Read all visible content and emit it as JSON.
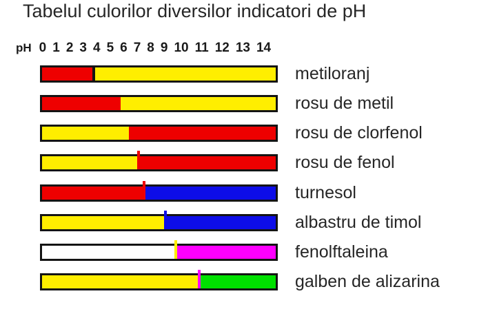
{
  "title": "Tabelul culorilor diversilor indicatori de pH",
  "colors": {
    "red": "#ee0000",
    "yellow": "#ffee00",
    "blue": "#0d0de8",
    "magenta": "#ff00ff",
    "green": "#00e000",
    "white": "#ffffff",
    "bar_border": "#141414",
    "text": "#262626"
  },
  "chart_data": {
    "type": "bar",
    "variant": "horizontal-color-range",
    "title": "Tabelul culorilor diversilor indicatori de pH",
    "axis": {
      "label": "pH",
      "min": 0,
      "max": 14,
      "ticks": [
        "0",
        "1",
        "2",
        "3",
        "4",
        "5",
        "6",
        "7",
        "8",
        "9",
        "10",
        "11",
        "12",
        "13",
        "14"
      ]
    },
    "legend_position": "right",
    "indicators": [
      {
        "name": "metiloranj",
        "transition_ph": 3.1,
        "segments": [
          {
            "color_name": "red",
            "color": "#ee0000",
            "from": 0,
            "to": 3.1
          },
          {
            "color_name": "yellow",
            "color": "#ffee00",
            "from": 3.1,
            "to": 14
          }
        ],
        "divider": {
          "color": "#141414",
          "at": 3.1,
          "above": false
        }
      },
      {
        "name": "rosu de metil",
        "transition_ph": 4.7,
        "segments": [
          {
            "color_name": "red",
            "color": "#ee0000",
            "from": 0,
            "to": 4.7
          },
          {
            "color_name": "yellow",
            "color": "#ffee00",
            "from": 4.7,
            "to": 14
          }
        ],
        "divider": null
      },
      {
        "name": "rosu de clorfenol",
        "transition_ph": 5.2,
        "segments": [
          {
            "color_name": "yellow",
            "color": "#ffee00",
            "from": 0,
            "to": 5.2
          },
          {
            "color_name": "red",
            "color": "#ee0000",
            "from": 5.2,
            "to": 14
          }
        ],
        "divider": null
      },
      {
        "name": "rosu de fenol",
        "transition_ph": 5.8,
        "segments": [
          {
            "color_name": "yellow",
            "color": "#ffee00",
            "from": 0,
            "to": 5.8
          },
          {
            "color_name": "red",
            "color": "#ee0000",
            "from": 5.8,
            "to": 14
          }
        ],
        "divider": {
          "color": "#ee0000",
          "at": 5.8,
          "above": true
        }
      },
      {
        "name": "turnesol",
        "transition_ph": 6.1,
        "segments": [
          {
            "color_name": "red",
            "color": "#ee0000",
            "from": 0,
            "to": 6.1
          },
          {
            "color_name": "blue",
            "color": "#0d0de8",
            "from": 6.1,
            "to": 14
          }
        ],
        "divider": {
          "color": "#ee0000",
          "at": 6.1,
          "above": true
        }
      },
      {
        "name": "albastru de timol",
        "transition_ph": 7.4,
        "segments": [
          {
            "color_name": "yellow",
            "color": "#ffee00",
            "from": 0,
            "to": 7.4
          },
          {
            "color_name": "blue",
            "color": "#0d0de8",
            "from": 7.4,
            "to": 14
          }
        ],
        "divider": {
          "color": "#0d0de8",
          "at": 7.4,
          "above": true
        }
      },
      {
        "name": "fenolftaleina",
        "transition_ph": 8.0,
        "segments": [
          {
            "color_name": "white",
            "color": "#ffffff",
            "from": 0,
            "to": 8.0
          },
          {
            "color_name": "magenta",
            "color": "#ff00ff",
            "from": 8.0,
            "to": 14
          }
        ],
        "divider": {
          "color": "#ffee00",
          "at": 8.0,
          "above": true
        }
      },
      {
        "name": "galben de alizarina",
        "transition_ph": 9.4,
        "segments": [
          {
            "color_name": "yellow",
            "color": "#ffee00",
            "from": 0,
            "to": 9.4
          },
          {
            "color_name": "green",
            "color": "#00e000",
            "from": 9.4,
            "to": 14
          }
        ],
        "divider": {
          "color": "#ff00ff",
          "at": 9.4,
          "above": true
        }
      }
    ]
  }
}
